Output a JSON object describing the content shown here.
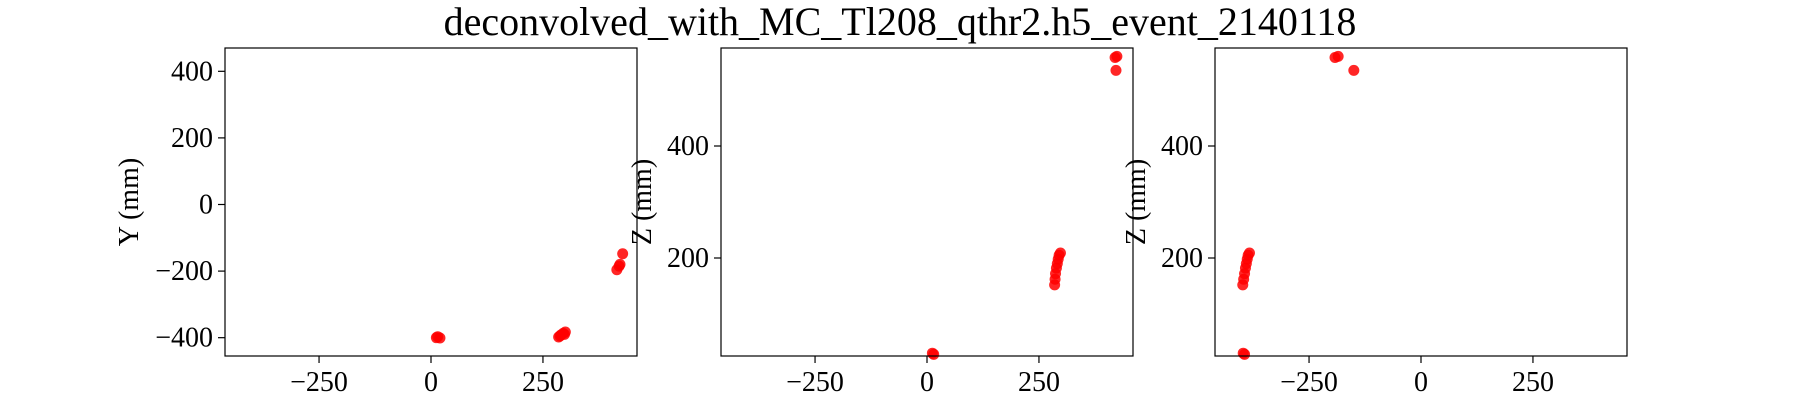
{
  "title": "deconvolved_with_MC_Tl208_qthr2.h5_event_2140118",
  "colors": {
    "points": "#ff0000",
    "axes": "#000000"
  },
  "chart_data": [
    {
      "type": "scatter",
      "ylabel": "Y (mm)",
      "xlim": [
        -460,
        460
      ],
      "ylim": [
        -455,
        470
      ],
      "xticks": [
        -250,
        0,
        250
      ],
      "xtick_labels": [
        "−250",
        "0",
        "250"
      ],
      "yticks": [
        -400,
        -200,
        0,
        200,
        400
      ],
      "ytick_labels": [
        "−400",
        "−200",
        "0",
        "200",
        "400"
      ],
      "points": [
        {
          "x": 12,
          "y": -400
        },
        {
          "x": 15,
          "y": -397
        },
        {
          "x": 20,
          "y": -401
        },
        {
          "x": 285,
          "y": -398
        },
        {
          "x": 290,
          "y": -392
        },
        {
          "x": 295,
          "y": -387
        },
        {
          "x": 300,
          "y": -383
        },
        {
          "x": 298,
          "y": -390
        },
        {
          "x": 288,
          "y": -395
        },
        {
          "x": 415,
          "y": -196
        },
        {
          "x": 420,
          "y": -185
        },
        {
          "x": 422,
          "y": -180
        },
        {
          "x": 428,
          "y": -148
        }
      ]
    },
    {
      "type": "scatter",
      "ylabel": "Z (mm)",
      "xlim": [
        -460,
        460
      ],
      "ylim": [
        25,
        575
      ],
      "xticks": [
        -250,
        0,
        250
      ],
      "xtick_labels": [
        "−250",
        "0",
        "250"
      ],
      "yticks": [
        200,
        400
      ],
      "ytick_labels": [
        "200",
        "400"
      ],
      "points": [
        {
          "x": 12,
          "y": 30
        },
        {
          "x": 15,
          "y": 28
        },
        {
          "x": 285,
          "y": 152
        },
        {
          "x": 286,
          "y": 162
        },
        {
          "x": 287,
          "y": 172
        },
        {
          "x": 289,
          "y": 182
        },
        {
          "x": 291,
          "y": 190
        },
        {
          "x": 293,
          "y": 198
        },
        {
          "x": 295,
          "y": 205
        },
        {
          "x": 298,
          "y": 209
        },
        {
          "x": 420,
          "y": 558
        },
        {
          "x": 424,
          "y": 560
        },
        {
          "x": 422,
          "y": 535
        }
      ]
    },
    {
      "type": "scatter",
      "ylabel": "Z (mm)",
      "xlim": [
        -460,
        460
      ],
      "ylim": [
        25,
        575
      ],
      "xticks": [
        -250,
        0,
        250
      ],
      "xtick_labels": [
        "−250",
        "0",
        "250"
      ],
      "yticks": [
        200,
        400
      ],
      "ytick_labels": [
        "200",
        "400"
      ],
      "points": [
        {
          "x": -397,
          "y": 30
        },
        {
          "x": -394,
          "y": 28
        },
        {
          "x": -398,
          "y": 152
        },
        {
          "x": -396,
          "y": 162
        },
        {
          "x": -394,
          "y": 172
        },
        {
          "x": -392,
          "y": 182
        },
        {
          "x": -390,
          "y": 190
        },
        {
          "x": -388,
          "y": 198
        },
        {
          "x": -386,
          "y": 205
        },
        {
          "x": -383,
          "y": 209
        },
        {
          "x": -192,
          "y": 558
        },
        {
          "x": -185,
          "y": 560
        },
        {
          "x": -150,
          "y": 535
        }
      ]
    }
  ]
}
